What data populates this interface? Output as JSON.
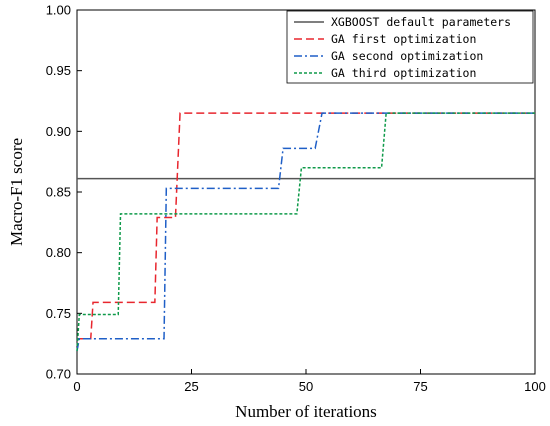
{
  "chart_data": {
    "type": "line",
    "xlabel": "Number of iterations",
    "ylabel": "Macro-F1 score",
    "xlim": [
      0,
      100
    ],
    "ylim": [
      0.7,
      1.0
    ],
    "xticks": [
      0,
      25,
      50,
      75,
      100
    ],
    "xtick_labels": [
      "0",
      "25",
      "50",
      "75",
      "100"
    ],
    "yticks": [
      0.7,
      0.75,
      0.8,
      0.85,
      0.9,
      0.95,
      1.0
    ],
    "ytick_labels": [
      "0.70",
      "0.75",
      "0.80",
      "0.85",
      "0.90",
      "0.95",
      "1.00"
    ],
    "grid": false,
    "legend_position": "top-right",
    "series": [
      {
        "name": "XGBOOST default parameters",
        "color": "#555555",
        "dash": "solid",
        "points": [
          [
            0,
            0.861
          ],
          [
            100,
            0.861
          ]
        ]
      },
      {
        "name": "GA first optimization",
        "color": "#e8262e",
        "dash": "dashed",
        "points": [
          [
            0,
            0.729
          ],
          [
            3,
            0.729
          ],
          [
            3.5,
            0.759
          ],
          [
            17,
            0.759
          ],
          [
            17.5,
            0.829
          ],
          [
            21.5,
            0.829
          ],
          [
            22.5,
            0.915
          ],
          [
            100,
            0.915
          ]
        ]
      },
      {
        "name": "GA second optimization",
        "color": "#1f5fc7",
        "dash": "dashdot",
        "points": [
          [
            0,
            0.719
          ],
          [
            0.5,
            0.729
          ],
          [
            19,
            0.729
          ],
          [
            19.5,
            0.853
          ],
          [
            44,
            0.853
          ],
          [
            45,
            0.886
          ],
          [
            52,
            0.886
          ],
          [
            53.5,
            0.915
          ],
          [
            100,
            0.915
          ]
        ]
      },
      {
        "name": "GA third optimization",
        "color": "#0f9a4a",
        "dash": "dotted",
        "points": [
          [
            0,
            0.719
          ],
          [
            0.5,
            0.749
          ],
          [
            9,
            0.749
          ],
          [
            9.5,
            0.832
          ],
          [
            48,
            0.832
          ],
          [
            49,
            0.87
          ],
          [
            66.5,
            0.87
          ],
          [
            67.5,
            0.915
          ],
          [
            100,
            0.915
          ]
        ]
      }
    ]
  }
}
